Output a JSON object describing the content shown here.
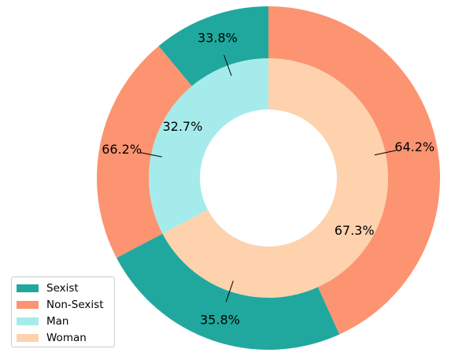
{
  "chart_data": {
    "type": "pie",
    "style": "nested donut",
    "outer_ring": {
      "categories": [
        "Sexist",
        "Non-Sexist",
        "Sexist",
        "Non-Sexist"
      ],
      "groups": [
        "Man",
        "Man",
        "Woman",
        "Woman"
      ],
      "values": [
        33.8,
        66.2,
        35.8,
        64.2
      ],
      "labels": [
        "33.8%",
        "66.2%",
        "35.8%",
        "64.2%"
      ],
      "colors": [
        "#20a89e",
        "#fc9471",
        "#20a89e",
        "#fc9471"
      ]
    },
    "inner_ring": {
      "categories": [
        "Man",
        "Woman"
      ],
      "values": [
        32.7,
        67.3
      ],
      "labels": [
        "32.7%",
        "67.3%"
      ],
      "colors": [
        "#a6ebeb",
        "#fdd2ad"
      ]
    },
    "legend": {
      "position": "bottom-left",
      "items": [
        {
          "label": "Sexist",
          "color": "#20a89e"
        },
        {
          "label": "Non-Sexist",
          "color": "#fc9471"
        },
        {
          "label": "Man",
          "color": "#a6ebeb"
        },
        {
          "label": "Woman",
          "color": "#fdd2ad"
        }
      ]
    }
  }
}
